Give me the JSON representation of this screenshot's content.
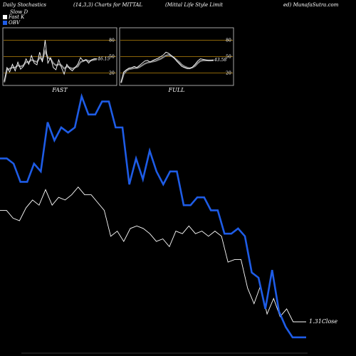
{
  "header": {
    "left": "Daily Stochastics",
    "params": "(14,3,3) Charts for MITTAL",
    "company": "(Mittal Life  Style  Limit",
    "site": "ed) MunafaSutra.com"
  },
  "legend": [
    {
      "label": "Slow D",
      "color": "#000000"
    },
    {
      "label": "Fast K",
      "color": "#ffffff"
    },
    {
      "label": "OBV",
      "color": "#1e5ce6"
    }
  ],
  "chart_data": [
    {
      "type": "line",
      "title": "FAST",
      "ylim": [
        0,
        100
      ],
      "yticks": [
        20,
        50,
        80
      ],
      "value_label": "46.15",
      "series": [
        {
          "name": "Fast K",
          "color": "#ffffff",
          "values": [
            5,
            30,
            22,
            36,
            24,
            40,
            27,
            32,
            46,
            36,
            52,
            38,
            35,
            58,
            40,
            80,
            38,
            48,
            30,
            26,
            44,
            30,
            18,
            36,
            28,
            24,
            30,
            36,
            48,
            42,
            44,
            38,
            44,
            46,
            46
          ]
        },
        {
          "name": "Slow D",
          "color": "#888888",
          "values": [
            3,
            26,
            28,
            30,
            30,
            34,
            32,
            34,
            40,
            40,
            44,
            42,
            40,
            48,
            44,
            60,
            48,
            46,
            38,
            34,
            36,
            34,
            28,
            32,
            30,
            28,
            30,
            32,
            40,
            42,
            44,
            42,
            43,
            44,
            45
          ]
        }
      ]
    },
    {
      "type": "line",
      "title": "FULL",
      "ylim": [
        0,
        100
      ],
      "yticks": [
        20,
        50,
        80
      ],
      "value_label": "43.58",
      "series": [
        {
          "name": "Fast K",
          "color": "#ffffff",
          "values": [
            3,
            22,
            26,
            29,
            30,
            32,
            30,
            34,
            38,
            42,
            43,
            40,
            43,
            45,
            47,
            50,
            53,
            58,
            56,
            52,
            48,
            42,
            37,
            32,
            30,
            28,
            28,
            31,
            36,
            42,
            46,
            45,
            44,
            43,
            43,
            44
          ]
        },
        {
          "name": "Slow D",
          "color": "#888888",
          "values": [
            2,
            18,
            24,
            27,
            28,
            29,
            29,
            31,
            34,
            37,
            39,
            40,
            41,
            42,
            44,
            46,
            49,
            52,
            53,
            51,
            48,
            44,
            40,
            35,
            32,
            30,
            29,
            30,
            33,
            38,
            42,
            43,
            43,
            43,
            43,
            43
          ]
        }
      ]
    },
    {
      "type": "line",
      "ylabel": "Close",
      "last_value_label": "1.31",
      "series": [
        {
          "name": "OBV",
          "color": "#1e5ce6",
          "values": [
            74,
            74,
            72,
            65,
            65,
            72,
            69,
            88,
            81,
            86,
            84,
            86,
            98,
            91,
            91,
            96,
            96,
            86,
            86,
            64,
            74,
            66,
            77,
            69,
            64,
            69,
            69,
            56,
            56,
            59,
            59,
            54,
            54,
            45,
            45,
            47,
            44,
            30,
            28,
            16,
            31,
            15,
            9,
            5,
            5,
            5
          ]
        },
        {
          "name": "Close",
          "color": "#ffffff",
          "values": [
            54,
            54,
            51,
            50,
            55,
            58,
            56,
            62,
            56,
            59,
            58,
            60,
            63,
            60,
            60,
            57,
            54,
            44,
            46,
            42,
            47,
            48,
            47,
            45,
            42,
            43,
            40,
            46,
            45,
            48,
            45,
            46,
            44,
            46,
            44,
            34,
            35,
            35,
            24,
            18,
            25,
            14,
            20,
            13,
            16,
            11,
            11,
            11
          ]
        }
      ]
    }
  ]
}
